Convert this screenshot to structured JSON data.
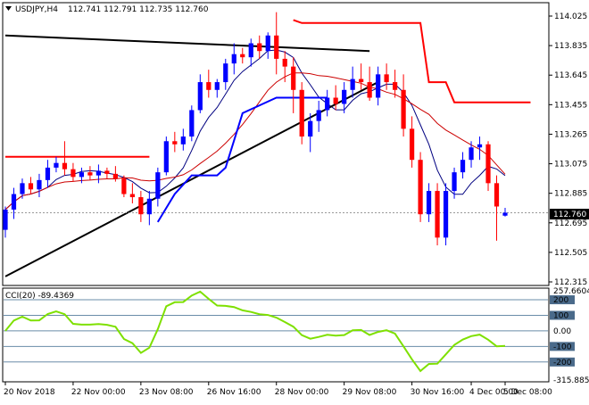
{
  "header": {
    "symbol": "USDJPY,H4",
    "ohlc": "112.741 112.791 112.735 112.760"
  },
  "indicator": {
    "title": "CCI(20) -89.4369",
    "scale_labels": [
      "257.6604",
      "200",
      "100",
      "0.00",
      "-100",
      "-200",
      "-315.8855"
    ],
    "levels": [
      200,
      100,
      0,
      -100,
      -200
    ],
    "max": 257.6604,
    "min": -315.8855
  },
  "price_axis": {
    "labels": [
      "114.025",
      "113.835",
      "113.645",
      "113.455",
      "113.265",
      "113.075",
      "112.885",
      "112.695",
      "112.505",
      "112.315"
    ],
    "min": 112.315,
    "max": 114.025,
    "current": "112.760",
    "current_value": 112.76
  },
  "time_axis": {
    "labels": [
      "20 Nov 2018",
      "22 Nov 00:00",
      "23 Nov 08:00",
      "26 Nov 16:00",
      "28 Nov 00:00",
      "29 Nov 08:00",
      "30 Nov 16:00",
      "4 Dec 00:00",
      "5 Dec 08:00"
    ]
  },
  "colors": {
    "bull": "#0000ff",
    "bear": "#ff0000",
    "fast_ma": "#000080",
    "slow_ma": "#cc0000",
    "cci": "#7ee000",
    "step_blue": "#0000ff",
    "step_red": "#ff0000",
    "trendline": "#000000",
    "level": "#6a8ca8"
  },
  "chart_data": {
    "type": "candlestick",
    "x_labels": [
      "20 Nov 2018",
      "22 Nov 00:00",
      "23 Nov 08:00",
      "26 Nov 16:00",
      "28 Nov 00:00",
      "29 Nov 08:00",
      "30 Nov 16:00",
      "4 Dec 00:00",
      "5 Dec 08:00"
    ],
    "ylim": [
      112.315,
      114.025
    ],
    "candles": [
      [
        112.65,
        112.8,
        112.6,
        112.78
      ],
      [
        112.78,
        112.92,
        112.72,
        112.88
      ],
      [
        112.88,
        112.98,
        112.85,
        112.95
      ],
      [
        112.95,
        112.99,
        112.88,
        112.91
      ],
      [
        112.91,
        113.01,
        112.86,
        112.97
      ],
      [
        112.97,
        113.1,
        112.92,
        113.05
      ],
      [
        113.05,
        113.12,
        113.02,
        113.08
      ],
      [
        113.08,
        113.22,
        113.0,
        113.04
      ],
      [
        113.04,
        113.08,
        112.96,
        112.99
      ],
      [
        112.99,
        113.05,
        112.95,
        113.02
      ],
      [
        113.02,
        113.06,
        112.97,
        113.0
      ],
      [
        113.0,
        113.07,
        112.95,
        113.03
      ],
      [
        113.03,
        113.05,
        112.98,
        113.01
      ],
      [
        113.01,
        113.06,
        112.96,
        112.98
      ],
      [
        112.98,
        113.0,
        112.86,
        112.88
      ],
      [
        112.88,
        112.95,
        112.82,
        112.86
      ],
      [
        112.86,
        112.9,
        112.7,
        112.75
      ],
      [
        112.75,
        112.9,
        112.68,
        112.85
      ],
      [
        112.85,
        113.05,
        112.8,
        113.02
      ],
      [
        113.02,
        113.25,
        113.0,
        113.22
      ],
      [
        113.22,
        113.28,
        113.15,
        113.2
      ],
      [
        113.2,
        113.3,
        113.16,
        113.25
      ],
      [
        113.25,
        113.45,
        113.22,
        113.42
      ],
      [
        113.42,
        113.65,
        113.4,
        113.6
      ],
      [
        113.6,
        113.68,
        113.5,
        113.55
      ],
      [
        113.55,
        113.62,
        113.5,
        113.6
      ],
      [
        113.6,
        113.75,
        113.55,
        113.72
      ],
      [
        113.72,
        113.85,
        113.65,
        113.78
      ],
      [
        113.78,
        113.82,
        113.72,
        113.76
      ],
      [
        113.76,
        113.88,
        113.7,
        113.85
      ],
      [
        113.85,
        113.9,
        113.75,
        113.8
      ],
      [
        113.8,
        113.92,
        113.75,
        113.9
      ],
      [
        113.9,
        114.05,
        113.65,
        113.75
      ],
      [
        113.75,
        113.8,
        113.6,
        113.7
      ],
      [
        113.7,
        113.76,
        113.4,
        113.55
      ],
      [
        113.55,
        113.6,
        113.2,
        113.25
      ],
      [
        113.25,
        113.4,
        113.15,
        113.35
      ],
      [
        113.35,
        113.48,
        113.28,
        113.42
      ],
      [
        113.42,
        113.55,
        113.38,
        113.5
      ],
      [
        113.5,
        113.58,
        113.42,
        113.46
      ],
      [
        113.46,
        113.6,
        113.4,
        113.55
      ],
      [
        113.55,
        113.7,
        113.5,
        113.62
      ],
      [
        113.62,
        113.72,
        113.55,
        113.6
      ],
      [
        113.6,
        113.7,
        113.48,
        113.5
      ],
      [
        113.5,
        113.7,
        113.45,
        113.65
      ],
      [
        113.65,
        113.72,
        113.55,
        113.6
      ],
      [
        113.6,
        113.68,
        113.5,
        113.55
      ],
      [
        113.55,
        113.65,
        113.25,
        113.3
      ],
      [
        113.3,
        113.38,
        113.05,
        113.1
      ],
      [
        113.1,
        113.15,
        112.7,
        112.75
      ],
      [
        112.75,
        112.95,
        112.7,
        112.9
      ],
      [
        112.9,
        112.95,
        112.55,
        112.6
      ],
      [
        112.6,
        112.95,
        112.55,
        112.9
      ],
      [
        112.9,
        113.05,
        112.85,
        113.02
      ],
      [
        113.02,
        113.15,
        112.98,
        113.1
      ],
      [
        113.1,
        113.22,
        113.05,
        113.18
      ],
      [
        113.18,
        113.25,
        113.1,
        113.2
      ],
      [
        113.2,
        113.22,
        112.9,
        112.95
      ],
      [
        112.95,
        113.0,
        112.58,
        112.8
      ],
      [
        112.741,
        112.791,
        112.735,
        112.76
      ]
    ]
  }
}
